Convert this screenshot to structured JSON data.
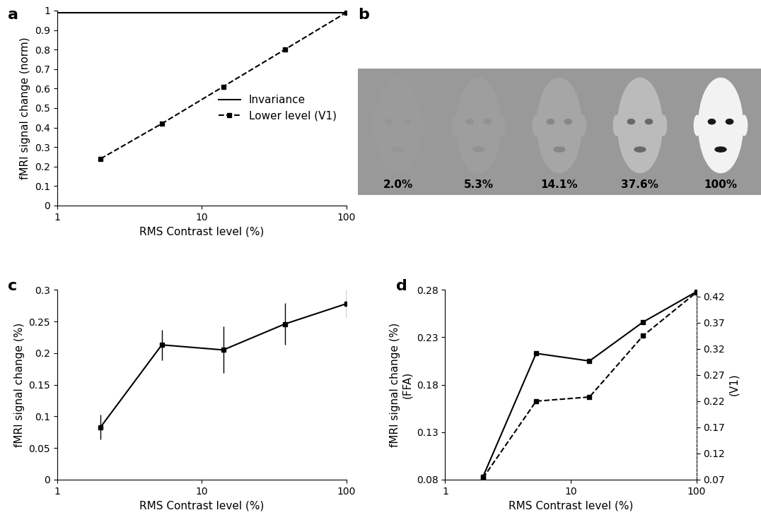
{
  "chart_data": [
    {
      "panel": "a",
      "type": "line",
      "x_label": "RMS Contrast level (%)",
      "y_label": "fMRI signal change (norm)",
      "log": "x",
      "xlim": [
        1,
        100
      ],
      "xticks": [
        1,
        10,
        100
      ],
      "ylim": [
        0,
        1
      ],
      "yticks": [
        0,
        0.1,
        0.2,
        0.3,
        0.4,
        0.5,
        0.6,
        0.7,
        0.8,
        0.9,
        1
      ],
      "legend": "center right",
      "series": [
        {
          "name": "Invariance",
          "color": "#000000",
          "line_style": "solid",
          "marker": "none",
          "x": [
            1,
            100
          ],
          "values": [
            0.99,
            0.99
          ]
        },
        {
          "name": "Lower level (V1)",
          "color": "#000000",
          "line_style": "dashed",
          "marker": "square",
          "x": [
            2.0,
            5.3,
            14.1,
            37.6,
            100
          ],
          "values": [
            0.24,
            0.42,
            0.61,
            0.8,
            0.99
          ]
        }
      ]
    },
    {
      "panel": "b",
      "type": "image",
      "contrast": [
        2.0,
        5.3,
        14.1,
        37.6,
        100
      ],
      "value_labels": [
        "2.0%",
        "5.3%",
        "14.1%",
        "37.6%",
        "100%"
      ]
    },
    {
      "panel": "c",
      "type": "line",
      "x_label": "RMS Contrast level (%)",
      "y_label": "fMRI signal change (%)",
      "log": "x",
      "xlim": [
        1,
        100
      ],
      "xticks": [
        1,
        10,
        100
      ],
      "ylim": [
        0,
        0.3
      ],
      "yticks": [
        0,
        0.05,
        0.1,
        0.15,
        0.2,
        0.25,
        0.3
      ],
      "series": [
        {
          "color": "#000000",
          "line_style": "solid",
          "marker": "square",
          "x": [
            2.0,
            5.3,
            14.1,
            37.6,
            100
          ],
          "values": [
            0.083,
            0.213,
            0.205,
            0.246,
            0.278
          ],
          "errors": [
            0.02,
            0.024,
            0.037,
            0.033,
            0.022
          ]
        }
      ]
    },
    {
      "panel": "d",
      "type": "line",
      "x_label": "RMS Contrast level (%)",
      "y_label": "fMRI signal change (%)\n(FFA)",
      "y2_label": "(V1)",
      "log": "x",
      "xlim": [
        1,
        100
      ],
      "xticks": [
        1,
        10,
        100
      ],
      "ylim": [
        0.08,
        0.28
      ],
      "yticks": [
        0.08,
        0.13,
        0.18,
        0.23,
        0.28
      ],
      "y2lim": [
        0.07,
        0.433
      ],
      "y2ticks": [
        0.07,
        0.12,
        0.17,
        0.22,
        0.27,
        0.32,
        0.37,
        0.42
      ],
      "series": [
        {
          "color": "#000000",
          "line_style": "solid",
          "marker": "square",
          "x": [
            2.0,
            5.3,
            14.1,
            37.6,
            100
          ],
          "values": [
            0.083,
            0.213,
            0.205,
            0.246,
            0.278
          ]
        },
        {
          "color": "#000000",
          "line_style": "dashed",
          "marker": "square",
          "axis": "y2",
          "x": [
            2.0,
            5.3,
            14.1,
            37.6,
            100
          ],
          "values": [
            0.073,
            0.22,
            0.228,
            0.345,
            0.428
          ]
        }
      ]
    }
  ]
}
